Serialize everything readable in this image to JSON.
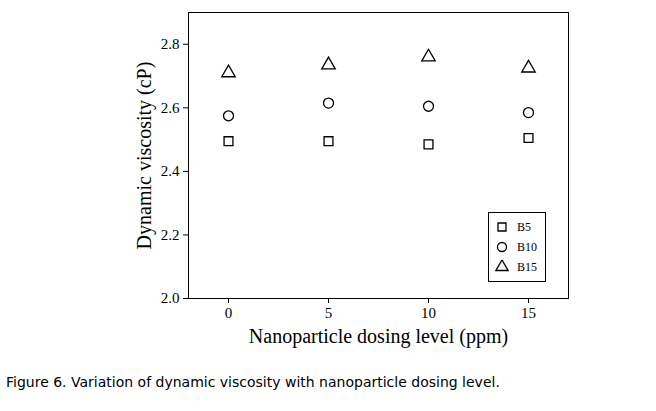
{
  "chart_data": {
    "type": "scatter",
    "caption": "Figure 6. Variation of dynamic viscosity with nanoparticle dosing level.",
    "x_label": "Nanoparticle dosing level (ppm)",
    "y_label": "Dynamic viscosity (cP)",
    "x": [
      0,
      5,
      10,
      15
    ],
    "series": [
      {
        "name": "B5",
        "color": "#000000",
        "marker": "square",
        "values": [
          2.495,
          2.495,
          2.485,
          2.505
        ]
      },
      {
        "name": "B10",
        "color": "#000000",
        "marker": "circle",
        "values": [
          2.575,
          2.615,
          2.605,
          2.585
        ]
      },
      {
        "name": "B15",
        "color": "#000000",
        "marker": "triangle",
        "values": [
          2.71,
          2.735,
          2.76,
          2.725
        ]
      }
    ],
    "xlim": [
      -2,
      17
    ],
    "xticks": [
      0,
      5,
      10,
      15
    ],
    "ylim": [
      2.0,
      2.9
    ],
    "yticks": [
      {
        "value": 2.0,
        "label": "2.0"
      },
      {
        "value": 2.2,
        "label": "2.2"
      },
      {
        "value": 2.4,
        "label": "2.4"
      },
      {
        "value": 2.6,
        "label": "2.6"
      },
      {
        "value": 2.8,
        "label": "2.8"
      }
    ],
    "grid": false,
    "legend": "lower right"
  }
}
